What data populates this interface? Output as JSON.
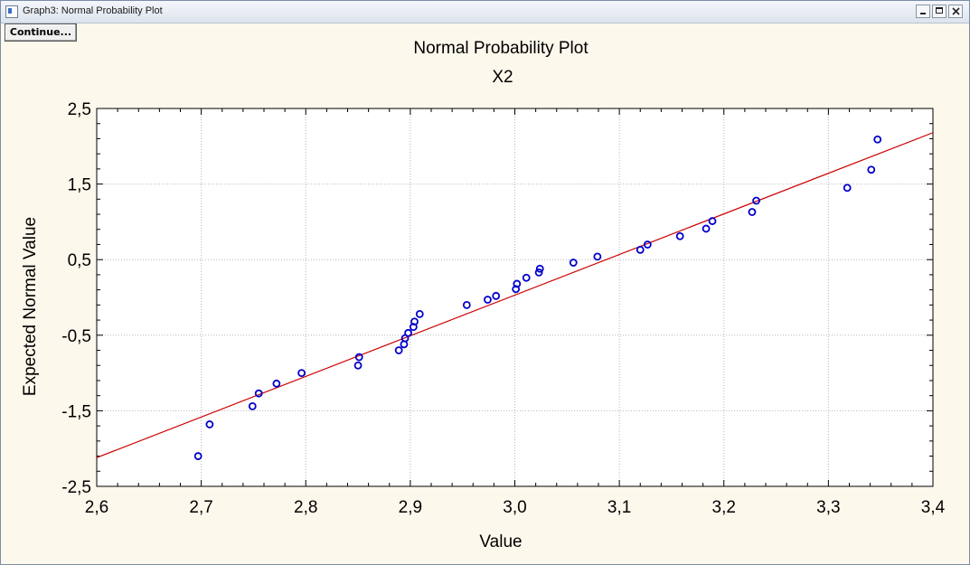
{
  "window": {
    "title": "Graph3: Normal Probability Plot",
    "continue_label": "Continue..."
  },
  "chart_data": {
    "type": "scatter",
    "title": "Normal Probability Plot",
    "subtitle": "X2",
    "xlabel": "Value",
    "ylabel": "Expected Normal Value",
    "xlim": [
      2.6,
      3.4
    ],
    "ylim": [
      -2.5,
      2.5
    ],
    "x_ticks": [
      "2,6",
      "2,7",
      "2,8",
      "2,9",
      "3,0",
      "3,1",
      "3,2",
      "3,3",
      "3,4"
    ],
    "x_tick_values": [
      2.6,
      2.7,
      2.8,
      2.9,
      3.0,
      3.1,
      3.2,
      3.3,
      3.4
    ],
    "y_ticks": [
      "2,5",
      "1,5",
      "0,5",
      "-0,5",
      "-1,5",
      "-2,5"
    ],
    "y_tick_values": [
      2.5,
      1.5,
      0.5,
      -0.5,
      -1.5,
      -2.5
    ],
    "grid": true,
    "reference_line": {
      "x": [
        2.6,
        3.4
      ],
      "y": [
        -2.12,
        2.18
      ],
      "color": "#cc0000"
    },
    "marker_color": "#0000cc",
    "points": [
      {
        "x": 2.697,
        "y": -2.1
      },
      {
        "x": 2.708,
        "y": -1.68
      },
      {
        "x": 2.749,
        "y": -1.44
      },
      {
        "x": 2.755,
        "y": -1.27
      },
      {
        "x": 2.772,
        "y": -1.14
      },
      {
        "x": 2.796,
        "y": -1.0
      },
      {
        "x": 2.85,
        "y": -0.9
      },
      {
        "x": 2.851,
        "y": -0.79
      },
      {
        "x": 2.889,
        "y": -0.7
      },
      {
        "x": 2.894,
        "y": -0.62
      },
      {
        "x": 2.895,
        "y": -0.54
      },
      {
        "x": 2.898,
        "y": -0.47
      },
      {
        "x": 2.903,
        "y": -0.39
      },
      {
        "x": 2.904,
        "y": -0.32
      },
      {
        "x": 2.909,
        "y": -0.22
      },
      {
        "x": 2.954,
        "y": -0.1
      },
      {
        "x": 2.974,
        "y": -0.03
      },
      {
        "x": 2.982,
        "y": 0.02
      },
      {
        "x": 3.001,
        "y": 0.11
      },
      {
        "x": 3.002,
        "y": 0.18
      },
      {
        "x": 3.011,
        "y": 0.26
      },
      {
        "x": 3.023,
        "y": 0.33
      },
      {
        "x": 3.024,
        "y": 0.38
      },
      {
        "x": 3.056,
        "y": 0.46
      },
      {
        "x": 3.079,
        "y": 0.54
      },
      {
        "x": 3.12,
        "y": 0.63
      },
      {
        "x": 3.127,
        "y": 0.7
      },
      {
        "x": 3.158,
        "y": 0.81
      },
      {
        "x": 3.183,
        "y": 0.91
      },
      {
        "x": 3.189,
        "y": 1.01
      },
      {
        "x": 3.227,
        "y": 1.13
      },
      {
        "x": 3.231,
        "y": 1.28
      },
      {
        "x": 3.318,
        "y": 1.45
      },
      {
        "x": 3.341,
        "y": 1.69
      },
      {
        "x": 3.347,
        "y": 2.09
      }
    ]
  }
}
